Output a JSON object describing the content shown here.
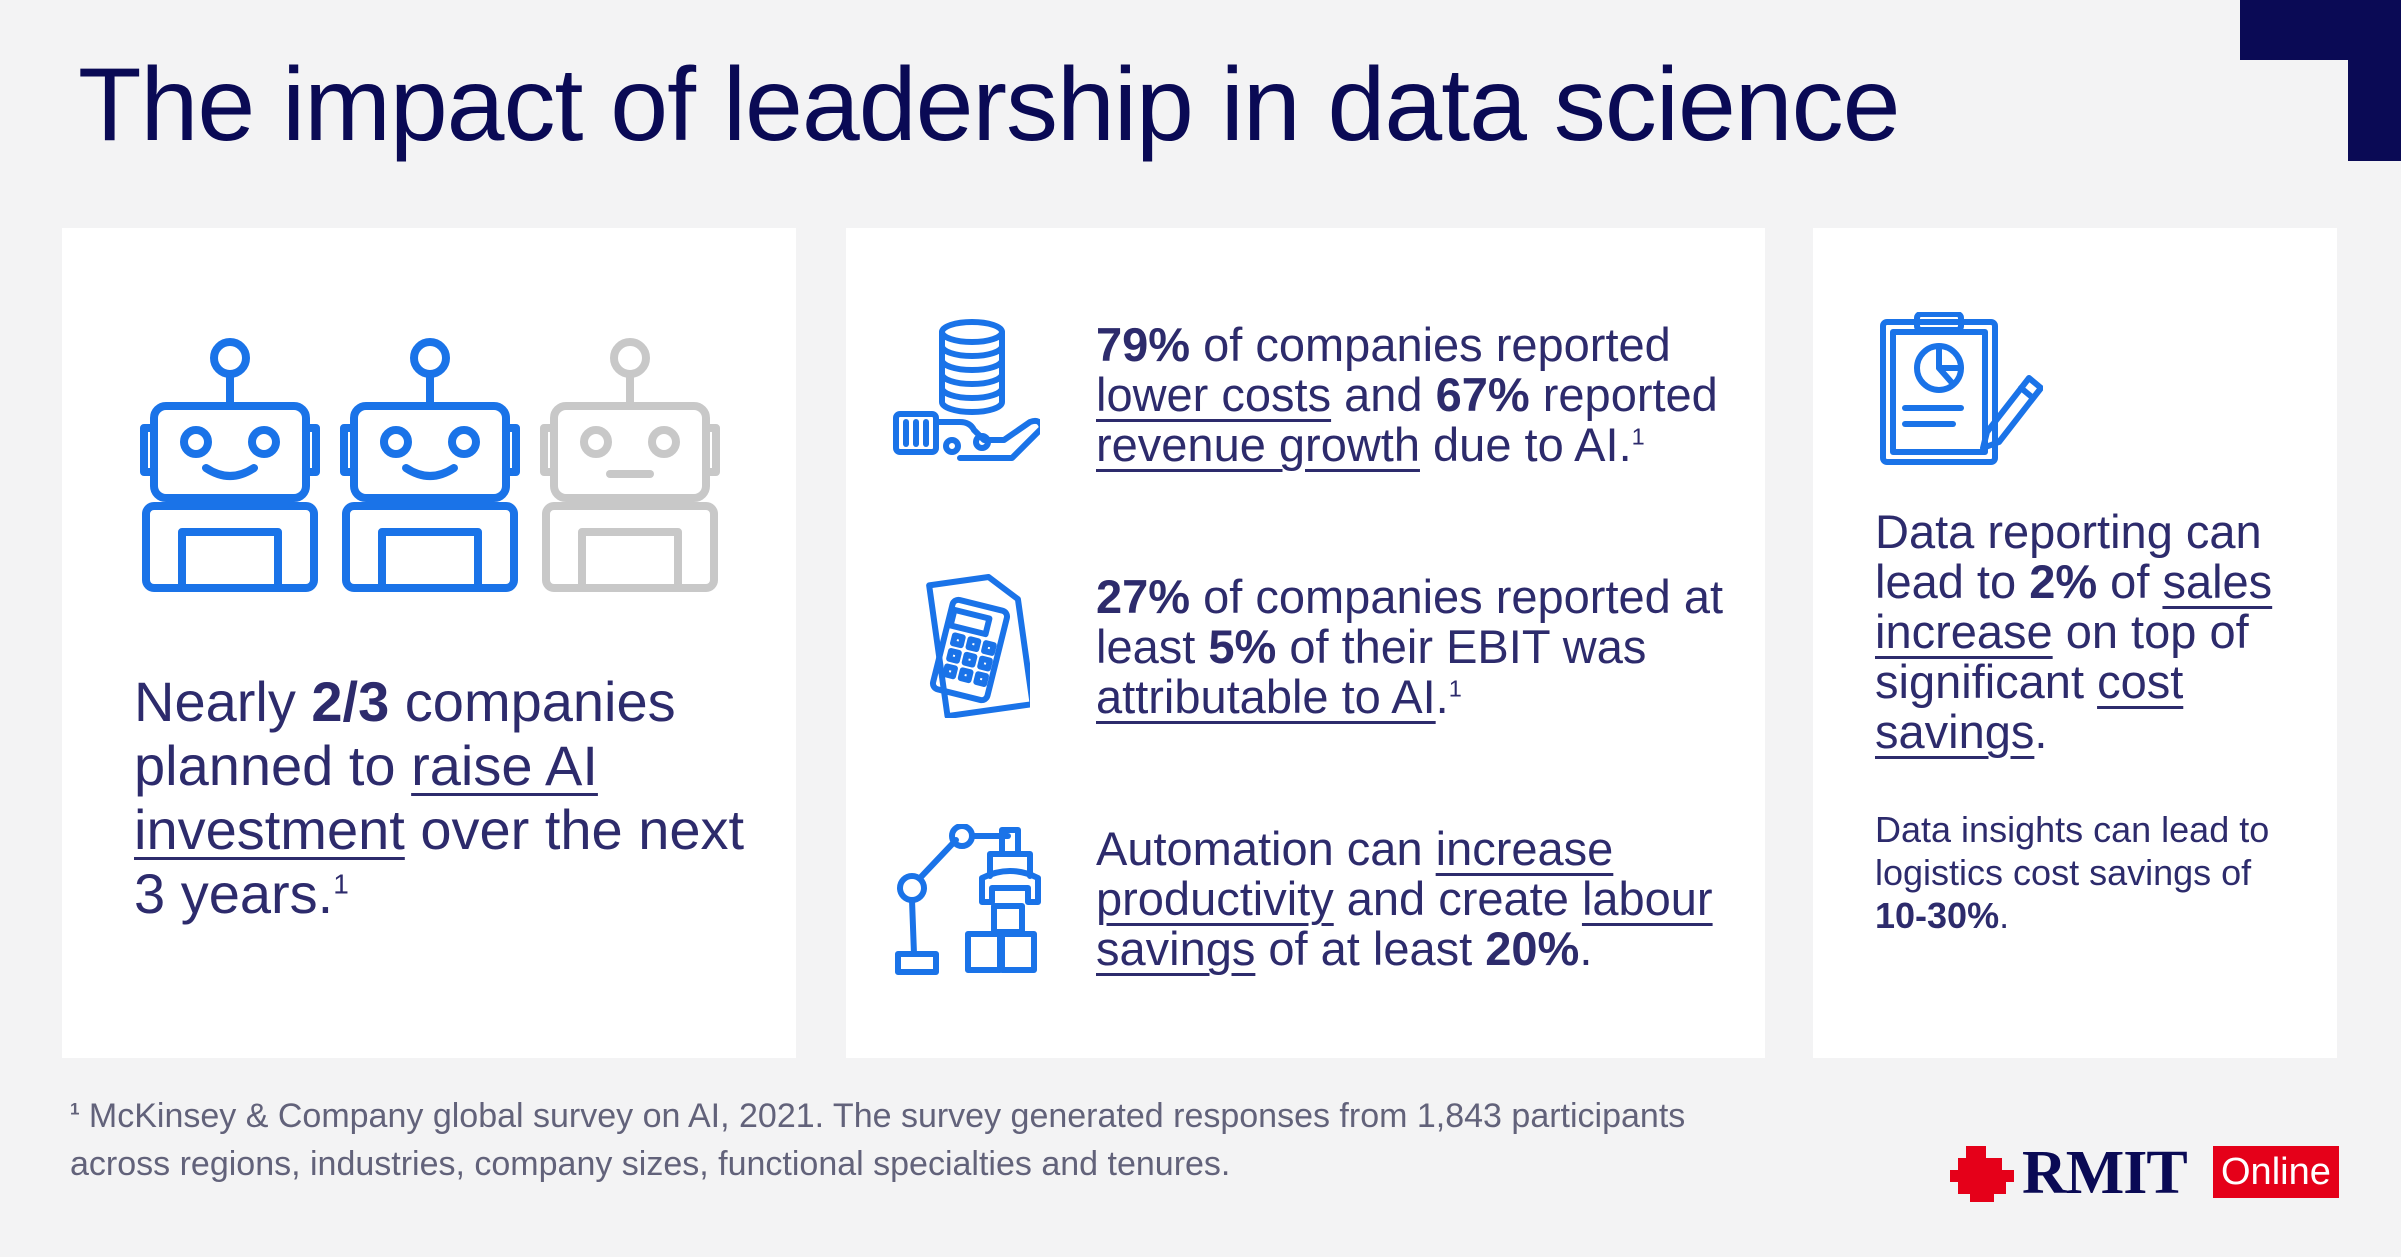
{
  "title": "The impact of leadership in data science",
  "colors": {
    "navy": "#0a0a55",
    "text": "#2d2b6c",
    "icon_blue": "#1a73e8",
    "icon_gray": "#c8c8c8",
    "rmit_red": "#e50019",
    "background": "#f3f3f4",
    "card": "#ffffff"
  },
  "left": {
    "icons": [
      "robot-icon-smiling",
      "robot-icon-smiling",
      "robot-icon-neutral-gray"
    ],
    "part1": "Nearly ",
    "bold1": "2/3",
    "part2": " companies planned to ",
    "link1": "raise AI investment",
    "part3": " over the next 3 years.",
    "sup": "1"
  },
  "middle": {
    "stat1": {
      "icon": "coins-hand-icon",
      "bold1": "79%",
      "part1": " of companies reported ",
      "link1": "lower costs",
      "part2": " and ",
      "bold2": "67%",
      "part3": " reported ",
      "link2": "revenue growth",
      "part4": " due to AI.",
      "sup": "1"
    },
    "stat2": {
      "icon": "calculator-document-icon",
      "bold1": "27%",
      "part1": " of companies reported at least ",
      "bold2": "5%",
      "part2": " of their EBIT was ",
      "link1": "attributable to AI",
      "part3": ".",
      "sup": "1"
    },
    "stat3": {
      "icon": "robotic-arm-icon",
      "part1": "Automation can ",
      "link1": "increase productivity",
      "part2": " and create ",
      "link2": "labour savings",
      "part3": " of at least ",
      "bold1": "20%",
      "part4": "."
    }
  },
  "right": {
    "icon": "report-clipboard-pencil-icon",
    "part1": "Data reporting can lead to ",
    "bold1": "2%",
    "part2": " of ",
    "link1": "sales increase",
    "part3": " on top of significant ",
    "link2": "cost savings",
    "part4": ".",
    "small_part1": "Data insights can lead to logistics cost savings of ",
    "small_bold": "10-30%",
    "small_part2": "."
  },
  "footnote": {
    "marker": "1",
    "text": "McKinsey & Company global survey on AI, 2021. The survey generated responses from 1,843 participants across regions, industries, company sizes, functional specialties and tenures."
  },
  "logo": {
    "name": "RMIT",
    "badge": "Online"
  }
}
